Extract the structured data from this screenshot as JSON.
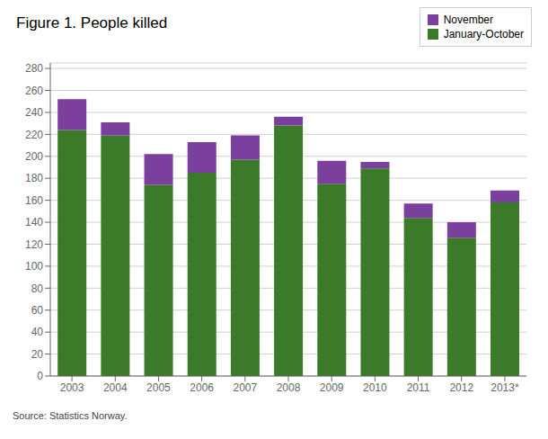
{
  "chart_data": {
    "type": "bar",
    "title": "Figure 1. People killed",
    "categories": [
      "2003",
      "2004",
      "2005",
      "2006",
      "2007",
      "2008",
      "2009",
      "2010",
      "2011",
      "2012",
      "2013*"
    ],
    "series": [
      {
        "name": "January-October",
        "color": "#3a7a28",
        "values": [
          224,
          219,
          174,
          185,
          197,
          228,
          175,
          189,
          144,
          126,
          158
        ]
      },
      {
        "name": "November",
        "color": "#7b3f9e",
        "values": [
          28,
          12,
          28,
          28,
          22,
          8,
          21,
          6,
          13,
          14,
          11
        ]
      }
    ],
    "stacked": true,
    "ylim": [
      0,
      285
    ],
    "yticks": [
      0,
      20,
      40,
      60,
      80,
      100,
      120,
      140,
      160,
      180,
      200,
      220,
      240,
      260,
      280
    ],
    "grid": true,
    "legend": "upper right",
    "annotations": [
      "Source: Statistics Norway."
    ]
  }
}
